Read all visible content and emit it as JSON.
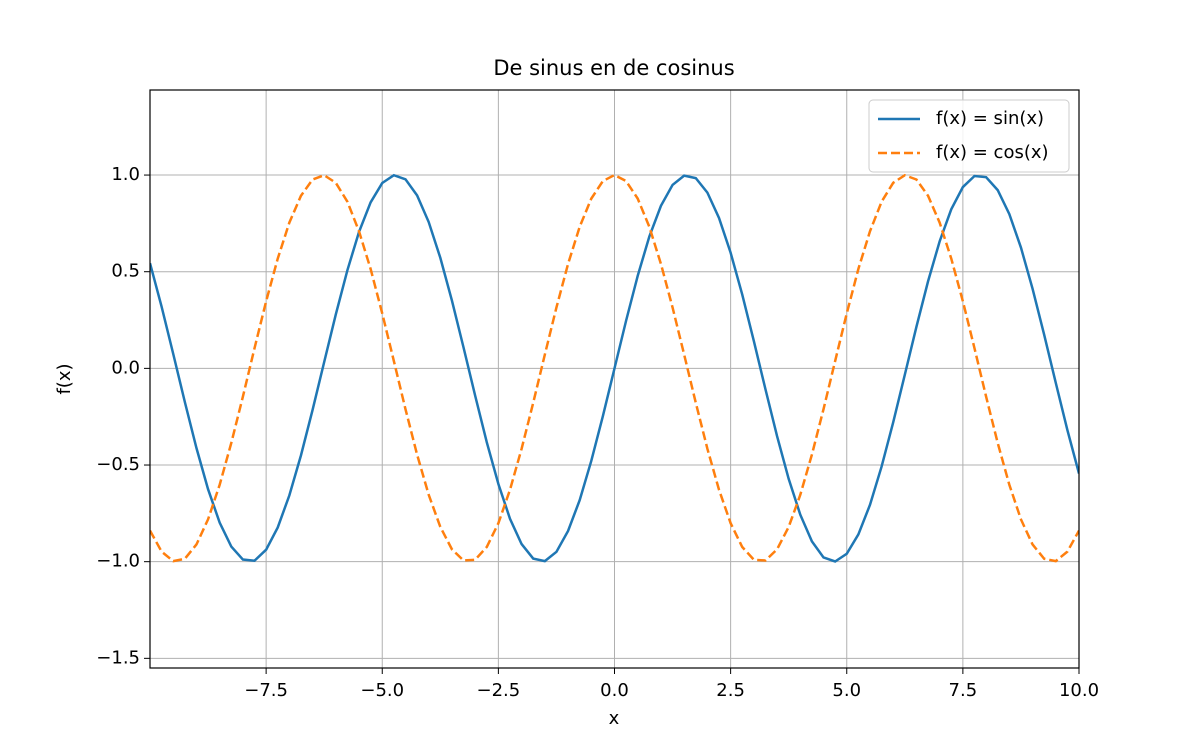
{
  "chart_data": {
    "type": "line",
    "title": "De sinus en de cosinus",
    "x_label": "x",
    "y_label": "f(x)",
    "x": [
      -10,
      -9.75,
      -9.5,
      -9.25,
      -9,
      -8.75,
      -8.5,
      -8.25,
      -8,
      -7.75,
      -7.5,
      -7.25,
      -7,
      -6.75,
      -6.5,
      -6.25,
      -6,
      -5.75,
      -5.5,
      -5.25,
      -5,
      -4.75,
      -4.5,
      -4.25,
      -4,
      -3.75,
      -3.5,
      -3.25,
      -3,
      -2.75,
      -2.5,
      -2.25,
      -2,
      -1.75,
      -1.5,
      -1.25,
      -1,
      -0.75,
      -0.5,
      -0.25,
      0,
      0.25,
      0.5,
      0.75,
      1,
      1.25,
      1.5,
      1.75,
      2,
      2.25,
      2.5,
      2.75,
      3,
      3.25,
      3.5,
      3.75,
      4,
      4.25,
      4.5,
      4.75,
      5,
      5.25,
      5.5,
      5.75,
      6,
      6.25,
      6.5,
      6.75,
      7,
      7.25,
      7.5,
      7.75,
      8,
      8.25,
      8.5,
      8.75,
      9,
      9.25,
      9.5,
      9.75,
      10
    ],
    "series": [
      {
        "name": "f(x) = sin(x)",
        "color": "#1f77b4",
        "linestyle": "solid",
        "values": [
          0.544,
          0.319,
          0.075,
          -0.174,
          -0.412,
          -0.625,
          -0.798,
          -0.922,
          -0.989,
          -0.995,
          -0.938,
          -0.823,
          -0.657,
          -0.45,
          -0.215,
          0.033,
          0.279,
          0.508,
          0.706,
          0.859,
          0.959,
          0.999,
          0.978,
          0.895,
          0.757,
          0.572,
          0.351,
          0.108,
          -0.141,
          -0.382,
          -0.598,
          -0.778,
          -0.909,
          -0.984,
          -0.997,
          -0.949,
          -0.841,
          -0.682,
          -0.479,
          -0.247,
          0,
          0.247,
          0.479,
          0.682,
          0.841,
          0.949,
          0.997,
          0.984,
          0.909,
          0.778,
          0.598,
          0.382,
          0.141,
          -0.108,
          -0.351,
          -0.572,
          -0.757,
          -0.895,
          -0.978,
          -0.999,
          -0.959,
          -0.859,
          -0.706,
          -0.508,
          -0.279,
          -0.033,
          0.215,
          0.45,
          0.657,
          0.823,
          0.938,
          0.995,
          0.989,
          0.922,
          0.798,
          0.625,
          0.412,
          0.174,
          -0.075,
          -0.319,
          -0.544
        ]
      },
      {
        "name": "f(x) = cos(x)",
        "color": "#ff7f0e",
        "linestyle": "dashed",
        "values": [
          -0.839,
          -0.948,
          -0.997,
          -0.985,
          -0.911,
          -0.781,
          -0.602,
          -0.386,
          -0.146,
          0.104,
          0.347,
          0.568,
          0.754,
          0.893,
          0.977,
          0.999,
          0.96,
          0.862,
          0.709,
          0.514,
          0.284,
          0.038,
          -0.211,
          -0.446,
          -0.654,
          -0.82,
          -0.936,
          -0.994,
          -0.99,
          -0.924,
          -0.801,
          -0.628,
          -0.416,
          -0.178,
          0.071,
          0.315,
          0.54,
          0.732,
          0.878,
          0.969,
          1,
          0.969,
          0.878,
          0.732,
          0.54,
          0.315,
          0.071,
          -0.178,
          -0.416,
          -0.628,
          -0.801,
          -0.924,
          -0.99,
          -0.994,
          -0.936,
          -0.82,
          -0.654,
          -0.446,
          -0.211,
          0.038,
          0.284,
          0.514,
          0.709,
          0.862,
          0.96,
          0.999,
          0.977,
          0.893,
          0.754,
          0.568,
          0.347,
          0.104,
          -0.146,
          -0.386,
          -0.602,
          -0.781,
          -0.911,
          -0.985,
          -0.997,
          -0.948,
          -0.839
        ]
      }
    ],
    "xlim": [
      -10,
      10
    ],
    "ylim": [
      -1.55,
      1.44
    ],
    "xticks": [
      {
        "value": -7.5,
        "label": "−7.5"
      },
      {
        "value": -5,
        "label": "−5.0"
      },
      {
        "value": -2.5,
        "label": "−2.5"
      },
      {
        "value": 0,
        "label": "0.0"
      },
      2.5,
      {
        "value": 5,
        "label": "5.0"
      },
      7.5,
      {
        "value": 10,
        "label": "10.0"
      }
    ],
    "yticks": [
      {
        "value": -1.5,
        "label": "−1.5"
      },
      {
        "value": -1,
        "label": "−1.0"
      },
      {
        "value": -0.5,
        "label": "−0.5"
      },
      {
        "value": 0,
        "label": "0.0"
      },
      0.5,
      {
        "value": 1,
        "label": "1.0"
      }
    ],
    "grid": true,
    "legend": "upper right"
  }
}
